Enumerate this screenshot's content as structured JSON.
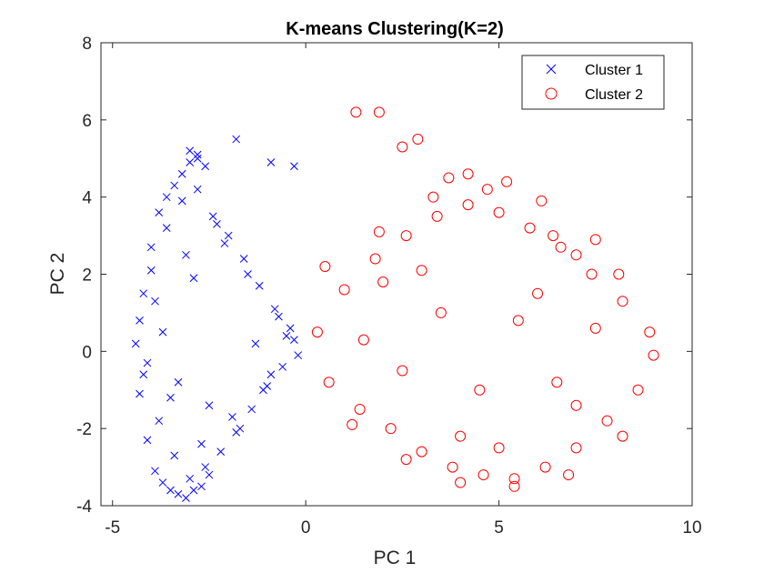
{
  "chart_data": {
    "type": "scatter",
    "title": "K-means Clustering(K=2)",
    "xlabel": "PC 1",
    "ylabel": "PC 2",
    "xlim": [
      -5.3,
      10
    ],
    "ylim": [
      -4,
      8
    ],
    "xticks": [
      "-5",
      "0",
      "5",
      "10"
    ],
    "yticks": [
      "-4",
      "-2",
      "0",
      "2",
      "4",
      "6",
      "8"
    ],
    "grid": false,
    "legend_position": "top-right",
    "series": [
      {
        "name": "Cluster 1",
        "marker": "x",
        "color": "#0000ff",
        "x": [
          -4.4,
          -4.3,
          -4.2,
          -4.1,
          -4.0,
          -3.9,
          -3.8,
          -3.7,
          -3.6,
          -3.5,
          -3.4,
          -3.3,
          -3.2,
          -3.1,
          -3.0,
          -2.9,
          -2.8,
          -2.7,
          -2.6,
          -2.5,
          -4.3,
          -4.2,
          -4.0,
          -3.8,
          -3.6,
          -3.4,
          -3.2,
          -3.0,
          -2.8,
          -2.6,
          -2.4,
          -2.2,
          -2.0,
          -1.8,
          -1.6,
          -1.4,
          -1.2,
          -1.0,
          -0.8,
          -0.6,
          -0.4,
          -0.2,
          -3.9,
          -3.5,
          -3.1,
          -2.7,
          -2.3,
          -1.9,
          -1.5,
          -1.1,
          -0.7,
          -0.3,
          -4.1,
          -3.7,
          -3.3,
          -2.9,
          -2.5,
          -2.1,
          -1.7,
          -1.3,
          -0.9,
          -0.5,
          -3.0,
          -2.8,
          -1.8,
          -0.9,
          -0.3
        ],
        "y": [
          0.2,
          -1.1,
          1.5,
          -2.3,
          2.7,
          -3.1,
          3.6,
          -3.4,
          4.0,
          -3.6,
          4.3,
          -3.7,
          4.6,
          -3.8,
          4.9,
          -3.6,
          5.1,
          -3.5,
          4.8,
          -3.2,
          0.8,
          -0.6,
          2.1,
          -1.8,
          3.2,
          -2.7,
          3.9,
          -3.3,
          4.2,
          -3.0,
          3.5,
          -2.6,
          3.0,
          -2.1,
          2.4,
          -1.5,
          1.7,
          -0.9,
          1.1,
          -0.4,
          0.6,
          -0.1,
          1.3,
          -1.2,
          2.5,
          -2.4,
          3.3,
          -1.7,
          2.0,
          -1.0,
          0.9,
          0.3,
          -0.3,
          0.5,
          -0.8,
          1.9,
          -1.4,
          2.8,
          -2.0,
          0.2,
          -0.6,
          0.4,
          5.2,
          5.0,
          5.5,
          4.9,
          4.8
        ]
      },
      {
        "name": "Cluster 2",
        "marker": "o",
        "color": "#ff0000",
        "x": [
          0.3,
          0.6,
          1.0,
          1.4,
          1.8,
          2.2,
          2.6,
          3.0,
          3.4,
          3.8,
          4.2,
          4.6,
          5.0,
          5.4,
          5.8,
          6.2,
          6.6,
          7.0,
          7.4,
          7.8,
          8.2,
          8.6,
          9.0,
          0.5,
          1.2,
          1.9,
          2.6,
          3.3,
          4.0,
          4.7,
          5.4,
          6.1,
          6.8,
          7.5,
          8.2,
          8.9,
          1.5,
          2.5,
          3.5,
          4.5,
          5.5,
          6.5,
          7.5,
          2.0,
          3.0,
          4.0,
          5.0,
          6.0,
          7.0,
          1.3,
          1.9,
          2.5,
          2.9,
          4.2,
          3.7,
          5.2,
          6.4,
          7.0,
          8.1
        ],
        "y": [
          0.5,
          -0.8,
          1.6,
          -1.5,
          2.4,
          -2.0,
          3.0,
          -2.6,
          3.5,
          -3.0,
          3.8,
          -3.2,
          3.6,
          -3.3,
          3.2,
          -3.0,
          2.7,
          -2.5,
          2.0,
          -1.8,
          1.3,
          -1.0,
          -0.1,
          2.2,
          -1.9,
          3.1,
          -2.8,
          4.0,
          -3.4,
          4.2,
          -3.5,
          3.9,
          -3.2,
          2.9,
          -2.2,
          0.5,
          0.3,
          -0.5,
          1.0,
          -1.0,
          0.8,
          -0.8,
          0.6,
          1.8,
          2.1,
          -2.2,
          -2.5,
          1.5,
          -1.4,
          6.2,
          6.2,
          5.3,
          5.5,
          4.6,
          4.5,
          4.4,
          3.0,
          2.5,
          2.0
        ]
      }
    ]
  }
}
